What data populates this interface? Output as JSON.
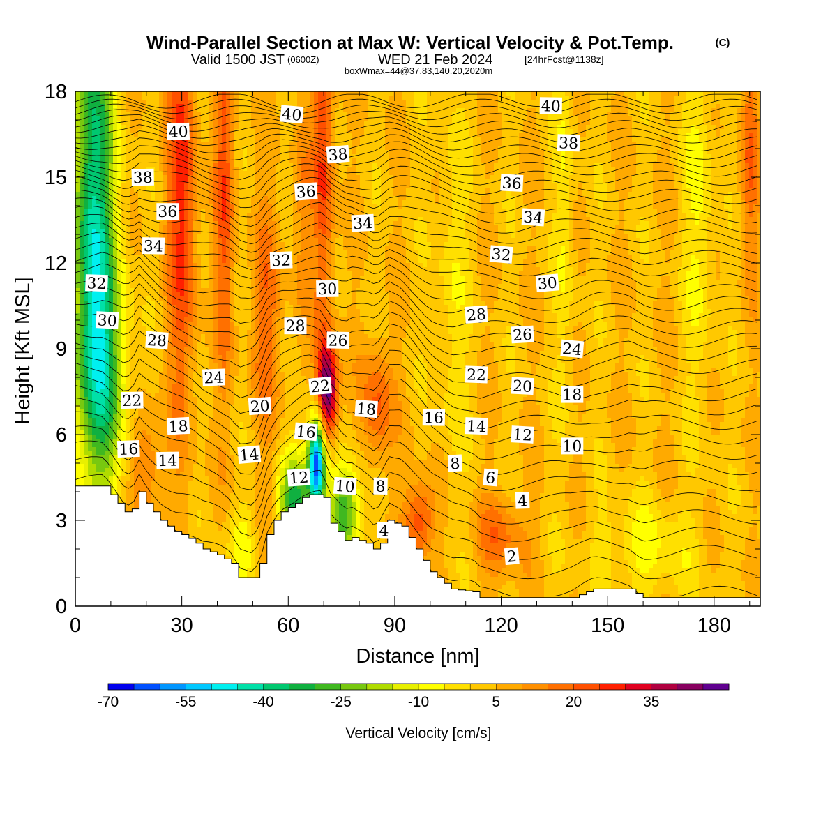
{
  "header": {
    "title_main": "Wind-Parallel Section at Max W: Vertical Velocity & Pot.Temp.",
    "title_tag": "(C)",
    "valid_prefix": "Valid 1500 JST",
    "valid_utc": "(0600Z)",
    "valid_date": "WED 21 Feb 2024",
    "forecast_tag": "[24hrFcst@1138z]",
    "box_info": "boxWmax=44@37.83,140.20,2020m"
  },
  "chart_data": {
    "type": "heatmap",
    "title": "Wind-Parallel Section at Max W: Vertical Velocity & Pot.Temp.",
    "xlabel": "Distance [nm]",
    "ylabel": "Height [Kft MSL]",
    "xlim": [
      0,
      193
    ],
    "ylim": [
      0,
      18
    ],
    "x_ticks": [
      "0",
      "30",
      "60",
      "90",
      "120",
      "150",
      "180"
    ],
    "y_ticks": [
      "0",
      "3",
      "6",
      "9",
      "12",
      "15",
      "18"
    ],
    "x_tick_values": [
      0,
      30,
      60,
      90,
      120,
      150,
      180
    ],
    "y_tick_values": [
      0,
      3,
      6,
      9,
      12,
      15,
      18
    ],
    "grid": false,
    "colorbar": {
      "label": "Vertical Velocity [cm/s]",
      "placement": "bottom",
      "levels": [
        -70,
        -65,
        -60,
        -55,
        -50,
        -45,
        -40,
        -35,
        -30,
        -25,
        -20,
        -15,
        -10,
        -5,
        0,
        5,
        10,
        15,
        20,
        25,
        30,
        35,
        40,
        45
      ],
      "colors": [
        "#0000ee",
        "#0050ff",
        "#0096ff",
        "#00c8ff",
        "#00f0f0",
        "#00e0a8",
        "#00c870",
        "#10b040",
        "#40b820",
        "#78c810",
        "#b0dc00",
        "#e8f000",
        "#ffff00",
        "#ffe000",
        "#ffc800",
        "#ffaa00",
        "#ff9000",
        "#ff7000",
        "#ff5000",
        "#ff2000",
        "#e00020",
        "#b00040",
        "#880060",
        "#600090"
      ],
      "tick_labels": [
        "-70",
        "-55",
        "-40",
        "-25",
        "-10",
        "5",
        "20",
        "35"
      ],
      "tick_values": [
        -70,
        -55,
        -40,
        -25,
        -10,
        5,
        20,
        35
      ]
    },
    "terrain_kft": [
      [
        0,
        4.2
      ],
      [
        8,
        4.2
      ],
      [
        10,
        3.9
      ],
      [
        12,
        3.6
      ],
      [
        14,
        3.3
      ],
      [
        16,
        3.4
      ],
      [
        18,
        4.0
      ],
      [
        20,
        3.6
      ],
      [
        22,
        3.3
      ],
      [
        24,
        3.0
      ],
      [
        26,
        2.8
      ],
      [
        28,
        2.6
      ],
      [
        30,
        2.5
      ],
      [
        33,
        2.3
      ],
      [
        36,
        2.0
      ],
      [
        40,
        1.8
      ],
      [
        44,
        1.5
      ],
      [
        46,
        1.0
      ],
      [
        50,
        1.0
      ],
      [
        52,
        1.5
      ],
      [
        54,
        2.5
      ],
      [
        56,
        3.0
      ],
      [
        58,
        3.3
      ],
      [
        62,
        3.6
      ],
      [
        64,
        3.8
      ],
      [
        66,
        3.9
      ],
      [
        68,
        3.9
      ],
      [
        70,
        3.8
      ],
      [
        71,
        3.0
      ],
      [
        72,
        2.9
      ],
      [
        74,
        2.6
      ],
      [
        76,
        2.3
      ],
      [
        78,
        2.4
      ],
      [
        82,
        2.2
      ],
      [
        84,
        2.0
      ],
      [
        86,
        2.2
      ],
      [
        88,
        3.0
      ],
      [
        90,
        2.9
      ],
      [
        92,
        2.8
      ],
      [
        94,
        2.4
      ],
      [
        96,
        2.0
      ],
      [
        98,
        1.6
      ],
      [
        100,
        1.2
      ],
      [
        102,
        1.0
      ],
      [
        104,
        0.8
      ],
      [
        106,
        0.6
      ],
      [
        112,
        0.5
      ],
      [
        114,
        0.3
      ],
      [
        130,
        0.3
      ],
      [
        140,
        0.3
      ],
      [
        146,
        0.6
      ],
      [
        150,
        0.6
      ],
      [
        156,
        0.6
      ],
      [
        160,
        0.3
      ],
      [
        193,
        0.3
      ]
    ],
    "w_features": [
      {
        "x": 5,
        "y": 14,
        "sx": 4,
        "sy": 6,
        "w": -45
      },
      {
        "x": 8,
        "y": 8,
        "sx": 5,
        "sy": 3,
        "w": -25
      },
      {
        "x": 30,
        "y": 15,
        "sx": 3,
        "sy": 6,
        "w": 22
      },
      {
        "x": 42,
        "y": 15,
        "sx": 2,
        "sy": 5,
        "w": 18
      },
      {
        "x": 70,
        "y": 16,
        "sx": 2,
        "sy": 5,
        "w": 22
      },
      {
        "x": 64,
        "y": 14,
        "sx": 2,
        "sy": 3,
        "w": 8
      },
      {
        "x": 54,
        "y": 10,
        "sx": 3,
        "sy": 3,
        "w": 14
      },
      {
        "x": 71,
        "y": 7.5,
        "sx": 2,
        "sy": 1.2,
        "w": 45
      },
      {
        "x": 68,
        "y": 5,
        "sx": 1.8,
        "sy": 1.2,
        "w": -70
      },
      {
        "x": 62,
        "y": 3.7,
        "sx": 3,
        "sy": 1.2,
        "w": -35
      },
      {
        "x": 76,
        "y": 3.3,
        "sx": 3,
        "sy": 1.2,
        "w": -35
      },
      {
        "x": 85,
        "y": 7,
        "sx": 3,
        "sy": 1.5,
        "w": 18
      },
      {
        "x": 97,
        "y": 3,
        "sx": 3,
        "sy": 1,
        "w": 22
      },
      {
        "x": 120,
        "y": 2.5,
        "sx": 5,
        "sy": 1,
        "w": 14
      },
      {
        "x": 47,
        "y": 2.2,
        "sx": 3,
        "sy": 1,
        "w": -10
      },
      {
        "x": 20,
        "y": 5,
        "sx": 3,
        "sy": 1.3,
        "w": 14
      },
      {
        "x": 106,
        "y": 11,
        "sx": 3,
        "sy": 5,
        "w": -8
      },
      {
        "x": 138,
        "y": 14,
        "sx": 2,
        "sy": 5,
        "w": -8
      },
      {
        "x": 176,
        "y": 14,
        "sx": 3,
        "sy": 5,
        "w": -10
      },
      {
        "x": 190,
        "y": 16,
        "sx": 2,
        "sy": 3,
        "w": 14
      },
      {
        "x": 160,
        "y": 2,
        "sx": 10,
        "sy": 1.2,
        "w": -10
      }
    ],
    "theta_levels": [
      {
        "value": "2",
        "x": 123,
        "y": 1.75
      },
      {
        "value": "4",
        "x": 87,
        "y": 2.65
      },
      {
        "value": "4",
        "x": 126,
        "y": 3.7
      },
      {
        "value": "6",
        "x": 117,
        "y": 4.5
      },
      {
        "value": "8",
        "x": 86,
        "y": 4.2
      },
      {
        "value": "8",
        "x": 107,
        "y": 5.0
      },
      {
        "value": "10",
        "x": 76,
        "y": 4.2
      },
      {
        "value": "10",
        "x": 140,
        "y": 5.6
      },
      {
        "value": "12",
        "x": 63,
        "y": 4.5
      },
      {
        "value": "12",
        "x": 126,
        "y": 6.0
      },
      {
        "value": "14",
        "x": 26,
        "y": 5.1
      },
      {
        "value": "14",
        "x": 49,
        "y": 5.3
      },
      {
        "value": "14",
        "x": 113,
        "y": 6.3
      },
      {
        "value": "16",
        "x": 15,
        "y": 5.5
      },
      {
        "value": "16",
        "x": 65,
        "y": 6.1
      },
      {
        "value": "16",
        "x": 101,
        "y": 6.6
      },
      {
        "value": "18",
        "x": 29,
        "y": 6.3
      },
      {
        "value": "18",
        "x": 82,
        "y": 6.9
      },
      {
        "value": "18",
        "x": 140,
        "y": 7.4
      },
      {
        "value": "20",
        "x": 52,
        "y": 7.0
      },
      {
        "value": "20",
        "x": 126,
        "y": 7.7
      },
      {
        "value": "22",
        "x": 16,
        "y": 7.2
      },
      {
        "value": "22",
        "x": 69,
        "y": 7.7
      },
      {
        "value": "22",
        "x": 113,
        "y": 8.1
      },
      {
        "value": "24",
        "x": 39,
        "y": 8.0
      },
      {
        "value": "24",
        "x": 140,
        "y": 9.0
      },
      {
        "value": "26",
        "x": 74,
        "y": 9.3
      },
      {
        "value": "26",
        "x": 126,
        "y": 9.5
      },
      {
        "value": "28",
        "x": 23,
        "y": 9.3
      },
      {
        "value": "28",
        "x": 62,
        "y": 9.8
      },
      {
        "value": "28",
        "x": 113,
        "y": 10.2
      },
      {
        "value": "30",
        "x": 9,
        "y": 10.0
      },
      {
        "value": "30",
        "x": 71,
        "y": 11.1
      },
      {
        "value": "30",
        "x": 133,
        "y": 11.3
      },
      {
        "value": "32",
        "x": 6,
        "y": 11.3
      },
      {
        "value": "32",
        "x": 58,
        "y": 12.1
      },
      {
        "value": "32",
        "x": 120,
        "y": 12.3
      },
      {
        "value": "34",
        "x": 22,
        "y": 12.6
      },
      {
        "value": "34",
        "x": 81,
        "y": 13.4
      },
      {
        "value": "34",
        "x": 129,
        "y": 13.6
      },
      {
        "value": "36",
        "x": 26,
        "y": 13.8
      },
      {
        "value": "36",
        "x": 65,
        "y": 14.5
      },
      {
        "value": "36",
        "x": 123,
        "y": 14.8
      },
      {
        "value": "38",
        "x": 19,
        "y": 15.0
      },
      {
        "value": "38",
        "x": 74,
        "y": 15.8
      },
      {
        "value": "38",
        "x": 139,
        "y": 16.2
      },
      {
        "value": "40",
        "x": 29,
        "y": 16.6
      },
      {
        "value": "40",
        "x": 61,
        "y": 17.2
      },
      {
        "value": "40",
        "x": 134,
        "y": 17.5
      }
    ]
  }
}
